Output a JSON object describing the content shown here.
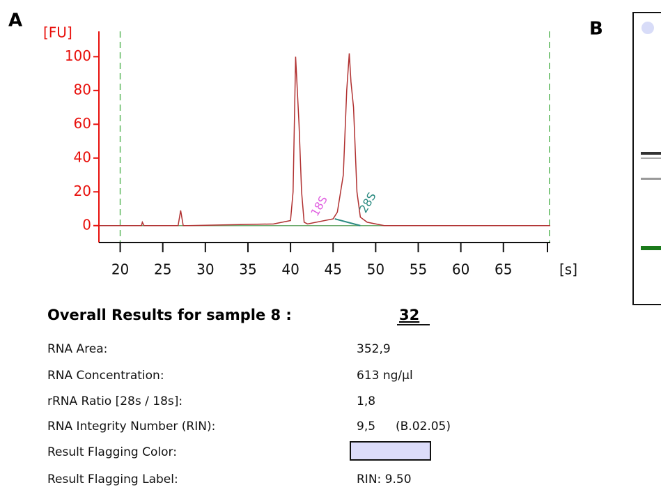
{
  "panel_labels": [
    "A",
    "B"
  ],
  "chart_data": {
    "type": "line",
    "ylabel": "[FU]",
    "xlabel": "[s]",
    "xlim": [
      17.5,
      70.5
    ],
    "ylim": [
      -10,
      115
    ],
    "xticks": [
      20,
      25,
      30,
      35,
      40,
      45,
      50,
      55,
      60,
      65
    ],
    "yticks": [
      0,
      20,
      40,
      60,
      80,
      100
    ],
    "dashed_lines": [
      20,
      70.4
    ],
    "peak_labels": [
      "18S",
      "28S"
    ],
    "series": [
      {
        "color": "#b03030",
        "x": [
          17.5,
          22.5,
          22.6,
          22.8,
          26.8,
          27.1,
          27.4,
          28,
          38,
          40,
          40.3,
          40.6,
          40.8,
          41,
          41.3,
          41.6,
          42,
          45,
          45.5,
          46.2,
          46.6,
          46.9,
          47.1,
          47.4,
          47.8,
          48.2,
          49,
          51,
          70.5
        ],
        "values": [
          0,
          0,
          2,
          0,
          0,
          9,
          0,
          0,
          1,
          3,
          20,
          100,
          80,
          60,
          20,
          2,
          1,
          4,
          8,
          30,
          80,
          102,
          85,
          70,
          20,
          5,
          2,
          0,
          0
        ]
      }
    ]
  },
  "results": {
    "title": "Overall Results for sample 8 :",
    "score": "32",
    "rows": [
      [
        "RNA Area:",
        "352,9"
      ],
      [
        "RNA Concentration:",
        "613 ng/µl"
      ],
      [
        "rRNA Ratio [28s / 18s]:",
        "1,8"
      ],
      [
        "RNA Integrity Number (RIN):",
        "9,5",
        "(B.02.05)"
      ],
      [
        "Result Flagging Color:"
      ],
      [
        "Result Flagging Label:",
        "RIN: 9.50"
      ]
    ],
    "flag_color": "#dcdcfa"
  }
}
